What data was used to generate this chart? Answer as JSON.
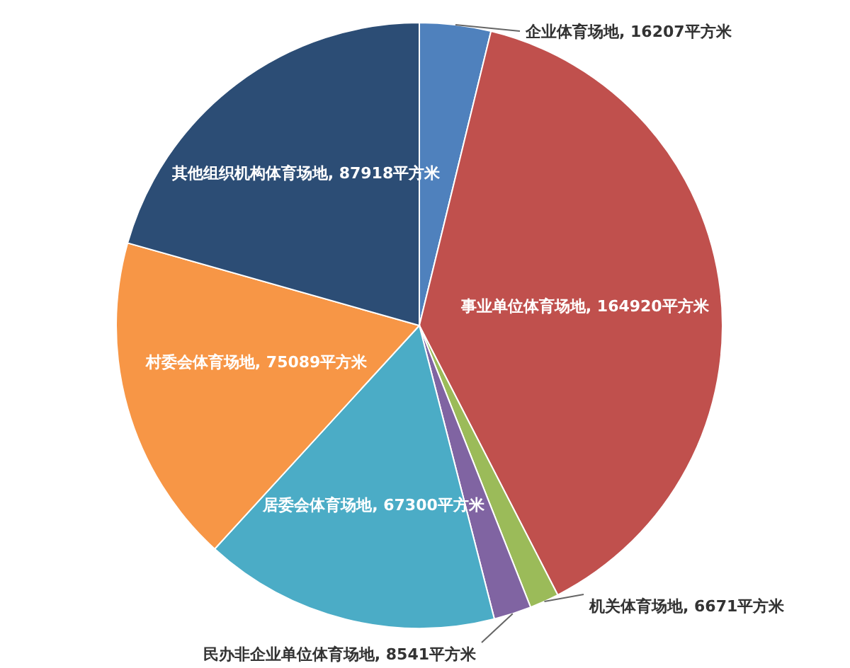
{
  "chart_data": {
    "type": "pie",
    "categories": [
      "企业体育场地",
      "事业单位体育场地",
      "机关体育场地",
      "民办非企业单位体育场地",
      "居委会体育场地",
      "村委会体育场地",
      "其他组织机构体育场地"
    ],
    "values": [
      16207,
      164920,
      6671,
      8541,
      67300,
      75089,
      87918
    ],
    "value_labels": [
      "16207平方米",
      "164920平方米",
      "6671平方米",
      "8541平方米",
      "67300平方米",
      "75089平方米",
      "87918平方米"
    ],
    "colors": [
      "#4f81bd",
      "#c0504d",
      "#9bbb59",
      "#8064a2",
      "#4bacc6",
      "#f79646",
      "#2c4d75"
    ]
  }
}
